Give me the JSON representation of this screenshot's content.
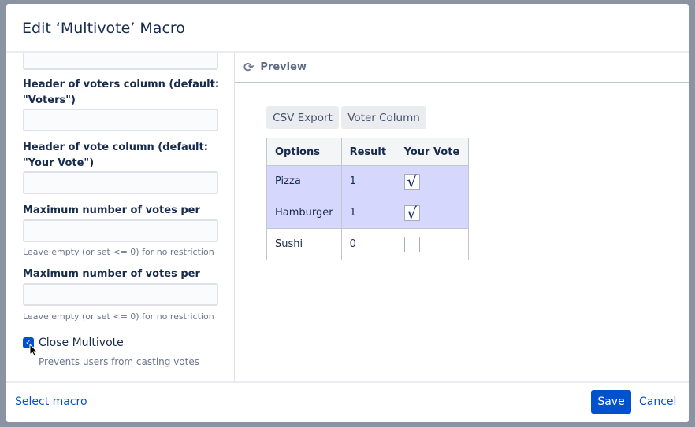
{
  "dialog": {
    "title": "Edit ‘Multivote’ Macro"
  },
  "form": {
    "voters_header_label": "Header of voters column (default: \"Voters\")",
    "voters_header_value": "",
    "vote_header_label": "Header of vote column (default: \"Your Vote\")",
    "vote_header_value": "",
    "max_person_label": "Maximum number of votes per person",
    "max_person_value": "",
    "max_person_help": "Leave empty (or set <= 0) for no restriction",
    "max_row_label": "Maximum number of votes per row",
    "max_row_value": "",
    "max_row_help": "Leave empty (or set <= 0) for no restriction",
    "close_label": "Close Multivote",
    "close_checked": true,
    "close_help": "Prevents users from casting votes"
  },
  "preview": {
    "title": "Preview",
    "buttons": [
      "CSV Export",
      "Voter Column"
    ],
    "headers": [
      "Options",
      "Result",
      "Your Vote"
    ],
    "rows": [
      {
        "option": "Pizza",
        "result": "1",
        "voted": true
      },
      {
        "option": "Hamburger",
        "result": "1",
        "voted": true
      },
      {
        "option": "Sushi",
        "result": "0",
        "voted": false
      }
    ],
    "check_glyph": "√"
  },
  "footer": {
    "select_macro": "Select macro",
    "save": "Save",
    "cancel": "Cancel"
  },
  "colors": {
    "primary": "#0052cc",
    "selected_row": "#d5d8fc"
  }
}
